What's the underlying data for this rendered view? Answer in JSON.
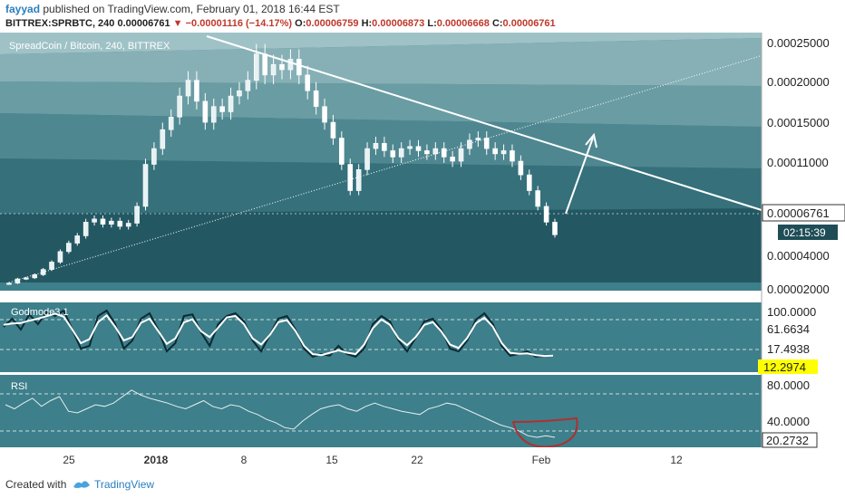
{
  "header": {
    "author": "fayyad",
    "published": "published on TradingView.com, February 01, 2018 16:44 EST",
    "symbol": "BITTREX:SPRBTC, 240",
    "last": "0.00006761",
    "change_arrow": "▼",
    "change": "−0.00001116 (−14.17%)",
    "o_label": "O:",
    "o_value": "0.00006759",
    "h_label": "H:",
    "h_value": "0.00006873",
    "l_label": "L:",
    "l_value": "0.00006668",
    "c_label": "C:",
    "c_value": "0.00006761"
  },
  "footer": {
    "created_with": "Created with",
    "brand": "TradingView"
  },
  "colors": {
    "pane_bg": "#2f6e7a",
    "band_light": "#8fb8bf",
    "band_dark": "#1f4d57",
    "axis_bg": "#ffffff",
    "candle": "#ffffff",
    "highlight": "#ffff00",
    "rsi_circle": "#b03030"
  },
  "chart_data": [
    {
      "type": "candlestick",
      "title": "SpreadCoin / Bitcoin, 240, BITTREX",
      "price_axis_ticks": [
        "0.00025000",
        "0.00020000",
        "0.00015000",
        "0.00011000",
        "0.00004000",
        "0.00002000"
      ],
      "last_price_label": "0.00006761",
      "countdown_label": "02:15:39",
      "x_ticks": [
        "25",
        "2018",
        "8",
        "15",
        "22",
        "Feb",
        "12"
      ],
      "closes": [
        2.2e-05,
        2.6e-05,
        2.7e-05,
        3e-05,
        3.5e-05,
        4.2e-05,
        5.2e-05,
        6e-05,
        6.7e-05,
        8e-05,
        8.3e-05,
        7.8e-05,
        8.1e-05,
        7.6e-05,
        7.9e-05,
        9.5e-05,
        0.000135,
        0.00015,
        0.000168,
        0.00018,
        0.0002,
        0.000215,
        0.000195,
        0.000175,
        0.00019,
        0.000185,
        0.0002,
        0.000205,
        0.000215,
        0.00024,
        0.00022,
        0.00023,
        0.000225,
        0.000235,
        0.00022,
        0.000205,
        0.00019,
        0.000175,
        0.00016,
        0.000135,
        0.00011,
        0.00013,
        0.00015,
        0.000155,
        0.000148,
        0.000142,
        0.00015,
        0.000152,
        0.000148,
        0.000145,
        0.00015,
        0.000142,
        0.000138,
        0.00015,
        0.000158,
        0.00016,
        0.00015,
        0.000145,
        0.000148,
        0.000138,
        0.000125,
        0.00011,
        9.5e-05,
        8e-05,
        6.8e-05
      ],
      "annotations": [
        "descending trendline",
        "ascending dotted trendline",
        "upward arrow projection"
      ]
    },
    {
      "type": "line",
      "title": "Godmode3.1",
      "y_ticks": [
        "100.0000",
        "61.6634",
        "17.4938"
      ],
      "highlight_label": "12.2974",
      "values": [
        65,
        80,
        60,
        88,
        70,
        92,
        85,
        95,
        60,
        25,
        30,
        85,
        95,
        70,
        25,
        40,
        80,
        90,
        60,
        20,
        35,
        85,
        88,
        55,
        30,
        70,
        85,
        90,
        75,
        40,
        20,
        50,
        80,
        85,
        60,
        25,
        10,
        15,
        12,
        30,
        15,
        10,
        25,
        70,
        85,
        75,
        40,
        20,
        45,
        75,
        80,
        60,
        25,
        20,
        40,
        78,
        90,
        70,
        30,
        12,
        15,
        20,
        10,
        12,
        12
      ]
    },
    {
      "type": "line",
      "title": "RSI",
      "y_ticks": [
        "80.0000",
        "40.0000"
      ],
      "last_label": "20.2732",
      "values": [
        60,
        55,
        62,
        68,
        58,
        65,
        70,
        52,
        50,
        55,
        60,
        58,
        62,
        70,
        78,
        72,
        68,
        65,
        62,
        58,
        55,
        60,
        65,
        58,
        55,
        60,
        58,
        52,
        48,
        42,
        38,
        32,
        30,
        40,
        48,
        55,
        58,
        60,
        55,
        52,
        58,
        62,
        58,
        55,
        52,
        50,
        48,
        55,
        58,
        62,
        60,
        55,
        50,
        45,
        40,
        35,
        32,
        28,
        22,
        20,
        22,
        20
      ]
    }
  ]
}
